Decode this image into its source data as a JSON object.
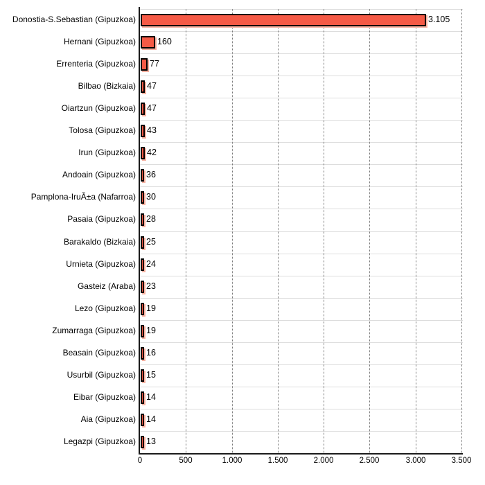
{
  "chart_data": {
    "type": "bar",
    "orientation": "horizontal",
    "categories": [
      "Donostia-S.Sebastian (Gipuzkoa)",
      "Hernani (Gipuzkoa)",
      "Errenteria (Gipuzkoa)",
      "Bilbao (Bizkaia)",
      "Oiartzun (Gipuzkoa)",
      "Tolosa (Gipuzkoa)",
      "Irun (Gipuzkoa)",
      "Andoain (Gipuzkoa)",
      "Pamplona-IruÃ±a (Nafarroa)",
      "Pasaia (Gipuzkoa)",
      "Barakaldo (Bizkaia)",
      "Urnieta (Gipuzkoa)",
      "Gasteiz (Araba)",
      "Lezo (Gipuzkoa)",
      "Zumarraga (Gipuzkoa)",
      "Beasain (Gipuzkoa)",
      "Usurbil (Gipuzkoa)",
      "Eibar (Gipuzkoa)",
      "Aia (Gipuzkoa)",
      "Legazpi (Gipuzkoa)"
    ],
    "values": [
      3105,
      160,
      77,
      47,
      47,
      43,
      42,
      36,
      30,
      28,
      25,
      24,
      23,
      19,
      19,
      16,
      15,
      14,
      14,
      13
    ],
    "value_labels": [
      "3.105",
      "160",
      "77",
      "47",
      "47",
      "43",
      "42",
      "36",
      "30",
      "28",
      "25",
      "24",
      "23",
      "19",
      "19",
      "16",
      "15",
      "14",
      "14",
      "13"
    ],
    "xlim": [
      0,
      3500
    ],
    "x_tick_values": [
      0,
      500,
      1000,
      1500,
      2000,
      2500,
      3000,
      3500
    ],
    "x_tick_labels": [
      "0",
      "500",
      "1.000",
      "1.500",
      "2.000",
      "2.500",
      "3.000",
      "3.500"
    ],
    "grid": "vertical-dotted",
    "legend": "none",
    "colors": {
      "bar_fill": "#F55A46",
      "bar_border": "#000000",
      "bar_shadow": "#F6B0A0",
      "gridline": "#777777",
      "row_separator": "#DDDDDD",
      "axis": "#1A1A1A",
      "text": "#000000",
      "background": "#FFFFFF"
    }
  }
}
